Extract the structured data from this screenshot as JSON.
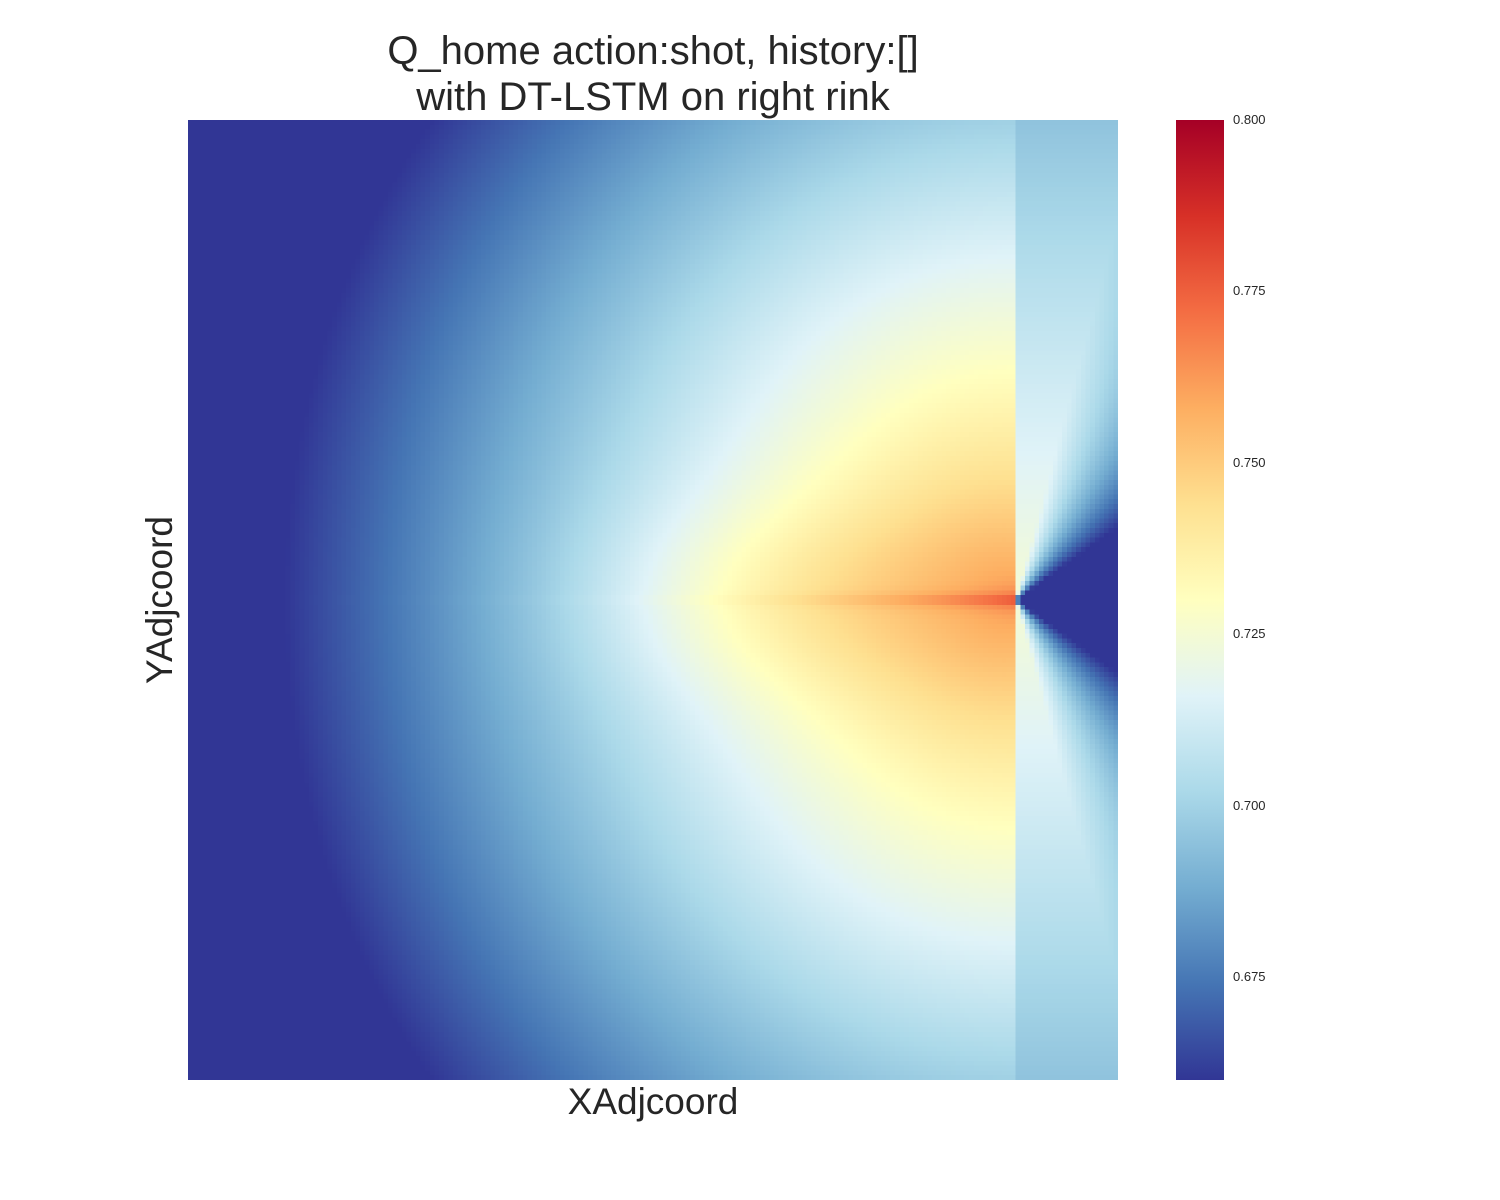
{
  "chart_data": {
    "type": "heatmap",
    "title": [
      "Q_home action:shot, history:[]",
      "with DT-LSTM on right rink"
    ],
    "xlabel": "XAdjcoord",
    "ylabel": "YAdjcoord",
    "grid": false,
    "colormap": "RdYlBu_r",
    "colormap_stops": [
      "#313695",
      "#4575b4",
      "#74add1",
      "#abd9e9",
      "#e0f3f8",
      "#ffffbf",
      "#fee090",
      "#fdae61",
      "#f46d43",
      "#d73027",
      "#a50026"
    ],
    "value_range": [
      0.66,
      0.8
    ],
    "colorbar": {
      "position": "right",
      "ticks": [
        0.675,
        0.7,
        0.725,
        0.75,
        0.775,
        0.8
      ],
      "tick_labels": [
        "0.675",
        "0.700",
        "0.725",
        "0.750",
        "0.775",
        "0.800"
      ]
    },
    "grid_size": [
      200,
      200
    ],
    "hotspot": {
      "x_fraction": 0.89,
      "y_fraction": 0.5,
      "peak_value": 0.775
    },
    "corner_values": {
      "top_left": 0.66,
      "bottom_left": 0.66,
      "right_of_hotspot": 0.66,
      "top_right": 0.69
    }
  }
}
